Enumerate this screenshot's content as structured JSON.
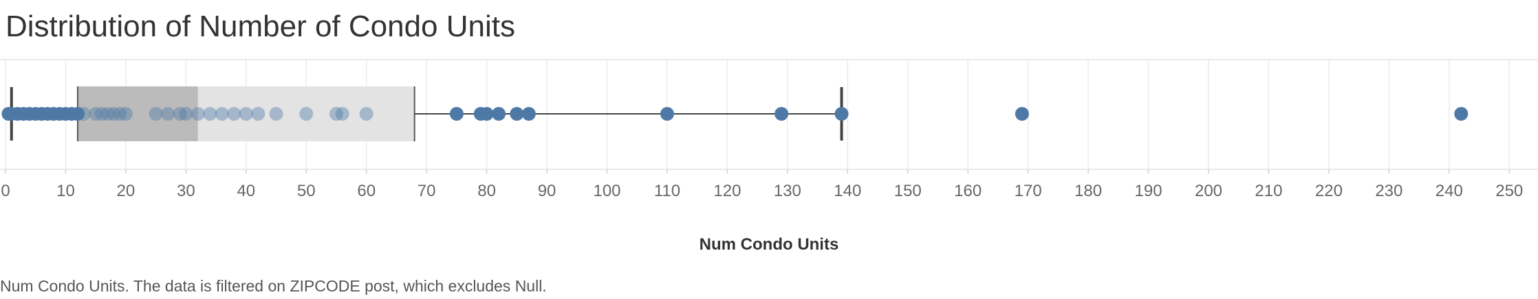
{
  "title": "Distribution of Number of Condo Units",
  "caption": "Num Condo Units. The data is filtered on ZIPCODE post, which excludes Null.",
  "chart_data": {
    "type": "box-plot",
    "title": "Distribution of Number of Condo Units",
    "xlabel": "Num Condo Units",
    "xlim": [
      0,
      256
    ],
    "ticks": [
      0,
      10,
      20,
      30,
      40,
      50,
      60,
      70,
      80,
      90,
      100,
      110,
      120,
      130,
      140,
      150,
      160,
      170,
      180,
      190,
      200,
      210,
      220,
      230,
      240,
      250
    ],
    "grid": true,
    "box": {
      "whisker_low": 1,
      "q1": 12,
      "median": 32,
      "q3": 68,
      "whisker_high": 139
    },
    "points": [
      0.5,
      1,
      2,
      3,
      4,
      5,
      6,
      7,
      8,
      9,
      10,
      11,
      12,
      13,
      15,
      16,
      17,
      18,
      19,
      20,
      25,
      27,
      29,
      30,
      32,
      34,
      36,
      38,
      40,
      42,
      45,
      50,
      55,
      56,
      60,
      75,
      79,
      80,
      82,
      85,
      87,
      110,
      129,
      139,
      169,
      242
    ],
    "colors": {
      "point": "#4e79a7",
      "box_lower": "#bbbbbb",
      "box_upper": "#e3e3e3",
      "whisker": "#444444",
      "grid": "#ececec"
    }
  }
}
